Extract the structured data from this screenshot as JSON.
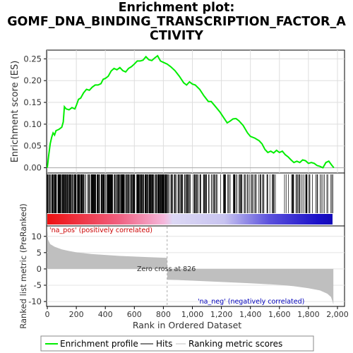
{
  "title": {
    "line1": "Enrichment plot:",
    "line2": "GOMF_DNA_BINDING_TRANSCRIPTION_FACTOR_A",
    "line3": "CTIVITY"
  },
  "chart_data": {
    "type": "line",
    "x_axis": {
      "label": "Rank in Ordered Dataset",
      "ticks": [
        "0",
        "200",
        "400",
        "600",
        "800",
        "1,000",
        "1,200",
        "1,400",
        "1,600",
        "1,800",
        "2,000"
      ],
      "range": [
        0,
        2000
      ]
    },
    "enrichment_panel": {
      "ylabel": "Enrichment score (ES)",
      "y_ticks": [
        "0.00",
        "0.05",
        "0.10",
        "0.15",
        "0.20",
        "0.25"
      ],
      "ylim": [
        -0.012,
        0.27
      ],
      "line_color": "#00ee00",
      "es_curve": [
        [
          0,
          0.0
        ],
        [
          10,
          0.03
        ],
        [
          20,
          0.055
        ],
        [
          30,
          0.07
        ],
        [
          40,
          0.08
        ],
        [
          50,
          0.075
        ],
        [
          60,
          0.085
        ],
        [
          80,
          0.088
        ],
        [
          100,
          0.093
        ],
        [
          110,
          0.105
        ],
        [
          118,
          0.14
        ],
        [
          130,
          0.135
        ],
        [
          150,
          0.133
        ],
        [
          170,
          0.138
        ],
        [
          190,
          0.135
        ],
        [
          200,
          0.143
        ],
        [
          215,
          0.157
        ],
        [
          230,
          0.16
        ],
        [
          250,
          0.172
        ],
        [
          270,
          0.18
        ],
        [
          290,
          0.178
        ],
        [
          310,
          0.185
        ],
        [
          330,
          0.19
        ],
        [
          350,
          0.19
        ],
        [
          370,
          0.193
        ],
        [
          385,
          0.203
        ],
        [
          400,
          0.205
        ],
        [
          420,
          0.21
        ],
        [
          440,
          0.222
        ],
        [
          460,
          0.228
        ],
        [
          480,
          0.225
        ],
        [
          500,
          0.23
        ],
        [
          520,
          0.223
        ],
        [
          540,
          0.22
        ],
        [
          560,
          0.228
        ],
        [
          580,
          0.232
        ],
        [
          600,
          0.238
        ],
        [
          620,
          0.245
        ],
        [
          640,
          0.245
        ],
        [
          660,
          0.247
        ],
        [
          680,
          0.255
        ],
        [
          700,
          0.248
        ],
        [
          720,
          0.246
        ],
        [
          740,
          0.252
        ],
        [
          760,
          0.257
        ],
        [
          780,
          0.245
        ],
        [
          800,
          0.242
        ],
        [
          826,
          0.238
        ],
        [
          850,
          0.232
        ],
        [
          880,
          0.223
        ],
        [
          910,
          0.21
        ],
        [
          940,
          0.195
        ],
        [
          960,
          0.19
        ],
        [
          980,
          0.197
        ],
        [
          1000,
          0.192
        ],
        [
          1020,
          0.19
        ],
        [
          1050,
          0.18
        ],
        [
          1080,
          0.165
        ],
        [
          1110,
          0.152
        ],
        [
          1130,
          0.152
        ],
        [
          1160,
          0.14
        ],
        [
          1190,
          0.128
        ],
        [
          1220,
          0.113
        ],
        [
          1240,
          0.103
        ],
        [
          1260,
          0.107
        ],
        [
          1280,
          0.112
        ],
        [
          1300,
          0.113
        ],
        [
          1320,
          0.108
        ],
        [
          1350,
          0.097
        ],
        [
          1380,
          0.08
        ],
        [
          1400,
          0.072
        ],
        [
          1430,
          0.068
        ],
        [
          1460,
          0.062
        ],
        [
          1480,
          0.055
        ],
        [
          1500,
          0.042
        ],
        [
          1520,
          0.035
        ],
        [
          1540,
          0.038
        ],
        [
          1560,
          0.034
        ],
        [
          1580,
          0.04
        ],
        [
          1600,
          0.035
        ],
        [
          1620,
          0.038
        ],
        [
          1640,
          0.03
        ],
        [
          1660,
          0.025
        ],
        [
          1680,
          0.018
        ],
        [
          1700,
          0.012
        ],
        [
          1720,
          0.015
        ],
        [
          1740,
          0.012
        ],
        [
          1760,
          0.018
        ],
        [
          1780,
          0.016
        ],
        [
          1800,
          0.01
        ],
        [
          1820,
          0.012
        ],
        [
          1840,
          0.01
        ],
        [
          1860,
          0.005
        ],
        [
          1880,
          0.003
        ],
        [
          1900,
          0.0
        ],
        [
          1920,
          0.012
        ],
        [
          1940,
          0.015
        ],
        [
          1960,
          0.006
        ],
        [
          1975,
          0.0
        ]
      ]
    },
    "ranked_metric_panel": {
      "ylabel": "Ranked list metric (PreRanked)",
      "y_ticks": [
        "10",
        "5",
        "0",
        "-5",
        "-10"
      ],
      "ylim": [
        -11.5,
        13.2
      ],
      "fill_color": "#bfbfbf",
      "metric_curve": [
        [
          0,
          12.0
        ],
        [
          5,
          9.0
        ],
        [
          20,
          7.6
        ],
        [
          50,
          6.8
        ],
        [
          100,
          6.0
        ],
        [
          150,
          5.5
        ],
        [
          200,
          5.1
        ],
        [
          300,
          4.6
        ],
        [
          400,
          4.3
        ],
        [
          500,
          4.0
        ],
        [
          600,
          3.8
        ],
        [
          700,
          3.6
        ],
        [
          826,
          3.4
        ],
        [
          827,
          -3.3
        ],
        [
          900,
          -3.4
        ],
        [
          1000,
          -3.6
        ],
        [
          1200,
          -4.0
        ],
        [
          1400,
          -4.4
        ],
        [
          1600,
          -4.9
        ],
        [
          1700,
          -5.3
        ],
        [
          1800,
          -5.9
        ],
        [
          1880,
          -6.6
        ],
        [
          1930,
          -7.6
        ],
        [
          1955,
          -8.6
        ],
        [
          1968,
          -10.2
        ],
        [
          1972,
          -11.0
        ]
      ],
      "pos_label": "'na_pos' (positively correlated)",
      "neg_label": "'na_neg' (negatively correlated)",
      "zero_cross_label": "Zero cross at 826",
      "zero_cross": 826
    },
    "dataset_size": 1972,
    "legend": {
      "placement": "bottom",
      "items": [
        {
          "label": "Enrichment profile",
          "color": "#00ee00"
        },
        {
          "label": "Hits",
          "color": "#000000"
        },
        {
          "label": "Ranking metric scores",
          "color": "#bfbfbf"
        }
      ]
    }
  }
}
